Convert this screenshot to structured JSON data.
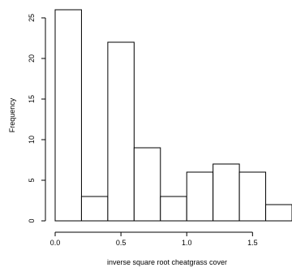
{
  "chart_data": {
    "type": "bar",
    "title": "",
    "xlabel": "inverse square root cheatgrass cover",
    "ylabel": "Frequency",
    "bin_edges": [
      0.0,
      0.2,
      0.4,
      0.6,
      0.8,
      1.0,
      1.2,
      1.4,
      1.6,
      1.8
    ],
    "values": [
      26,
      3,
      22,
      9,
      3,
      6,
      7,
      6,
      2
    ],
    "xlim": [
      0.0,
      1.8
    ],
    "ylim": [
      0,
      26
    ],
    "x_ticks": [
      "0.0",
      "0.5",
      "1.0",
      "1.5"
    ],
    "x_tick_values": [
      0.0,
      0.5,
      1.0,
      1.5
    ],
    "y_ticks": [
      "0",
      "5",
      "10",
      "15",
      "20",
      "25"
    ],
    "y_tick_values": [
      0,
      5,
      10,
      15,
      20,
      25
    ],
    "grid": false,
    "legend": "none"
  }
}
